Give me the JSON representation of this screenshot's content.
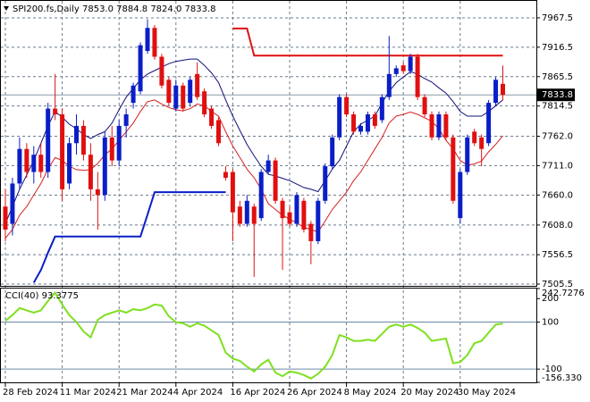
{
  "chart_data": [
    {
      "type": "candlestick",
      "title": "SPI200.fs,Daily  7853.0 7884.8 7824.0 7833.8",
      "categories": [
        "28 Feb 2024",
        null,
        null,
        null,
        null,
        null,
        null,
        null,
        "11 Mar 2024",
        null,
        null,
        null,
        null,
        null,
        null,
        null,
        "21 Mar 2024",
        null,
        null,
        null,
        null,
        null,
        null,
        null,
        "4 Apr 2024",
        null,
        null,
        null,
        null,
        null,
        null,
        null,
        "16 Apr 2024",
        null,
        null,
        null,
        null,
        null,
        null,
        null,
        "26 Apr 2024",
        null,
        null,
        null,
        null,
        null,
        null,
        null,
        "8 May 2024",
        null,
        null,
        null,
        null,
        null,
        null,
        null,
        "20 May 2024",
        null,
        null,
        null,
        null,
        null,
        null,
        null,
        "30 May 2024",
        null,
        null,
        null,
        null,
        null,
        null
      ],
      "open": [
        7640,
        7610,
        7680,
        7740,
        7700,
        7730,
        7700,
        7810,
        7800,
        7680,
        7750,
        7780,
        7730,
        7670,
        7660,
        7760,
        7720,
        7780,
        7820,
        7840,
        7910,
        7950,
        7900,
        7860,
        7810,
        7850,
        7820,
        7870,
        7840,
        7810,
        7790,
        7700,
        7700,
        7640,
        7610,
        7640,
        7620,
        7700,
        7720,
        7650,
        7630,
        7610,
        7650,
        7610,
        7580,
        7650,
        7710,
        7760,
        7830,
        7800,
        7770,
        7770,
        7800,
        7790,
        7830,
        7870,
        7885,
        7875,
        7900,
        7830,
        7800,
        7760,
        7800,
        7760,
        7620,
        7700,
        7770,
        7760,
        7750,
        7820,
        7853.0
      ],
      "high": [
        7670,
        7690,
        7760,
        7750,
        7745,
        7750,
        7820,
        7870,
        7810,
        7760,
        7800,
        7790,
        7750,
        7700,
        7770,
        7780,
        7790,
        7810,
        7855,
        7925,
        7965,
        7955,
        7905,
        7865,
        7860,
        7855,
        7865,
        7890,
        7845,
        7815,
        7795,
        7710,
        7705,
        7650,
        7660,
        7645,
        7705,
        7730,
        7725,
        7655,
        7640,
        7665,
        7655,
        7615,
        7655,
        7715,
        7765,
        7835,
        7835,
        7805,
        7785,
        7805,
        7805,
        7835,
        7936,
        7885,
        7890,
        7905,
        7905,
        7835,
        7805,
        7805,
        7805,
        7765,
        7705,
        7765,
        7775,
        7765,
        7825,
        7865,
        7884.8
      ],
      "low": [
        7580,
        7590,
        7670,
        7690,
        7680,
        7690,
        7690,
        7790,
        7650,
        7670,
        7730,
        7720,
        7650,
        7600,
        7650,
        7710,
        7710,
        7760,
        7810,
        7835,
        7905,
        7895,
        7845,
        7815,
        7805,
        7805,
        7815,
        7825,
        7795,
        7775,
        7745,
        7685,
        7580,
        7605,
        7605,
        7518,
        7615,
        7695,
        7645,
        7530,
        7605,
        7605,
        7595,
        7540,
        7575,
        7645,
        7705,
        7755,
        7795,
        7765,
        7765,
        7765,
        7775,
        7785,
        7825,
        7865,
        7870,
        7870,
        7825,
        7795,
        7755,
        7755,
        7755,
        7645,
        7610,
        7695,
        7745,
        7710,
        7745,
        7815,
        7824.0
      ],
      "close": [
        7600,
        7680,
        7740,
        7700,
        7730,
        7700,
        7810,
        7800,
        7670,
        7750,
        7780,
        7730,
        7670,
        7660,
        7760,
        7720,
        7780,
        7800,
        7850,
        7920,
        7950,
        7900,
        7850,
        7820,
        7850,
        7810,
        7860,
        7830,
        7800,
        7780,
        7750,
        7690,
        7630,
        7610,
        7650,
        7610,
        7700,
        7720,
        7650,
        7620,
        7610,
        7660,
        7600,
        7580,
        7650,
        7710,
        7760,
        7830,
        7800,
        7770,
        7780,
        7800,
        7780,
        7830,
        7870,
        7880,
        7875,
        7900,
        7830,
        7800,
        7760,
        7800,
        7760,
        7650,
        7700,
        7760,
        7750,
        7740,
        7820,
        7860,
        7833.8
      ],
      "lines": [
        {
          "color": "#10107a",
          "values": [
            7610,
            7640,
            7670,
            7695,
            7720,
            7750,
            7780,
            7805,
            7795,
            7783,
            7775,
            7765,
            7758,
            7765,
            7770,
            7785,
            7808,
            7830,
            7845,
            7860,
            7870,
            7876,
            7882,
            7888,
            7892,
            7894,
            7896,
            7896,
            7885,
            7872,
            7855,
            7825,
            7797,
            7772,
            7748,
            7728,
            7710,
            7696,
            7693,
            7689,
            7685,
            7679,
            7673,
            7670,
            7666,
            7685,
            7705,
            7720,
            7745,
            7770,
            7783,
            7790,
            7797,
            7820,
            7840,
            7855,
            7865,
            7874,
            7870,
            7862,
            7856,
            7846,
            7837,
            7822,
            7805,
            7797,
            7797,
            7797,
            7805,
            7815,
            7825
          ]
        },
        {
          "color": "#d42020",
          "values": [
            7585,
            7600,
            7625,
            7640,
            7660,
            7680,
            7705,
            7725,
            7720,
            7710,
            7704,
            7703,
            7704,
            7715,
            7730,
            7740,
            7755,
            7770,
            7785,
            7805,
            7822,
            7825,
            7818,
            7812,
            7808,
            7806,
            7810,
            7818,
            7815,
            7805,
            7797,
            7770,
            7745,
            7725,
            7705,
            7690,
            7670,
            7645,
            7635,
            7625,
            7618,
            7612,
            7604,
            7600,
            7596,
            7615,
            7635,
            7650,
            7665,
            7685,
            7700,
            7720,
            7740,
            7760,
            7785,
            7797,
            7800,
            7804,
            7800,
            7794,
            7788,
            7775,
            7755,
            7740,
            7720,
            7712,
            7714,
            7719,
            7735,
            7748,
            7763
          ]
        },
        {
          "color": "#0a1ec8",
          "width": 2,
          "values": [
            null,
            null,
            null,
            null,
            7508,
            7530,
            7560,
            7588,
            7588,
            7588,
            7588,
            7588,
            7588,
            7588,
            7588,
            7588,
            7588,
            7588,
            7588,
            7588,
            7626,
            7665,
            7665,
            7665,
            7665,
            7665,
            7665,
            7665,
            7665,
            7665,
            7665,
            7665,
            null,
            null,
            null,
            null,
            null,
            null,
            null,
            null,
            null,
            null,
            null,
            null,
            null,
            null,
            null,
            null,
            null,
            null,
            null,
            null,
            null,
            null,
            null,
            null,
            null,
            null,
            null,
            null,
            null,
            null,
            null,
            null,
            null,
            null,
            null,
            null,
            null,
            null,
            null
          ]
        },
        {
          "color": "#e01010",
          "width": 2,
          "values": [
            null,
            null,
            null,
            null,
            null,
            null,
            null,
            null,
            null,
            null,
            null,
            null,
            null,
            null,
            null,
            null,
            null,
            null,
            null,
            null,
            null,
            null,
            null,
            null,
            null,
            null,
            null,
            null,
            null,
            null,
            null,
            null,
            7949,
            7949,
            7949,
            7902,
            7902,
            7902,
            7902,
            7902,
            7902,
            7902,
            7902,
            7902,
            7902,
            7902,
            7902,
            7902,
            7902,
            7902,
            7902,
            7902,
            7902,
            7902,
            7902,
            7902,
            7902,
            7902,
            7902,
            7902,
            7902,
            7902,
            7902,
            7902,
            7902,
            7902,
            7902,
            7902,
            7902,
            7902,
            7902
          ]
        }
      ],
      "up_color": "#0a1ec8",
      "down_color": "#e01010",
      "ylim": [
        7502.4,
        7993.8
      ],
      "yticks": [
        7967.5,
        7916.5,
        7865.5,
        7814.5,
        {
          "value": 7762,
          "label": "7762.0"
        },
        {
          "value": 7711,
          "label": "7711.0"
        },
        {
          "value": 7660,
          "label": "7660.0"
        },
        {
          "value": 7608,
          "label": "7608.0"
        },
        7556.5,
        7505.5
      ],
      "grid": true
    },
    {
      "type": "line",
      "title": "CCI(40) 93.3775",
      "color": "#7ee01e",
      "values": [
        105,
        130,
        160,
        150,
        140,
        150,
        190,
        225,
        175,
        130,
        100,
        60,
        35,
        110,
        130,
        140,
        150,
        140,
        155,
        150,
        160,
        175,
        170,
        125,
        100,
        95,
        80,
        95,
        85,
        65,
        45,
        -30,
        -55,
        -65,
        -90,
        -110,
        -80,
        -60,
        -115,
        -130,
        -110,
        -115,
        -125,
        -140,
        -120,
        -90,
        -40,
        45,
        35,
        20,
        20,
        25,
        20,
        50,
        80,
        90,
        80,
        90,
        75,
        55,
        20,
        25,
        30,
        -75,
        -70,
        -40,
        10,
        20,
        55,
        90,
        93.3775
      ],
      "ylim": [
        -156.33,
        242.7276
      ],
      "yticks": [
        242.7276,
        200,
        100,
        -100,
        {
          "value": -156.33,
          "label": "-156.330"
        }
      ],
      "levels": [
        100,
        -100
      ]
    }
  ]
}
